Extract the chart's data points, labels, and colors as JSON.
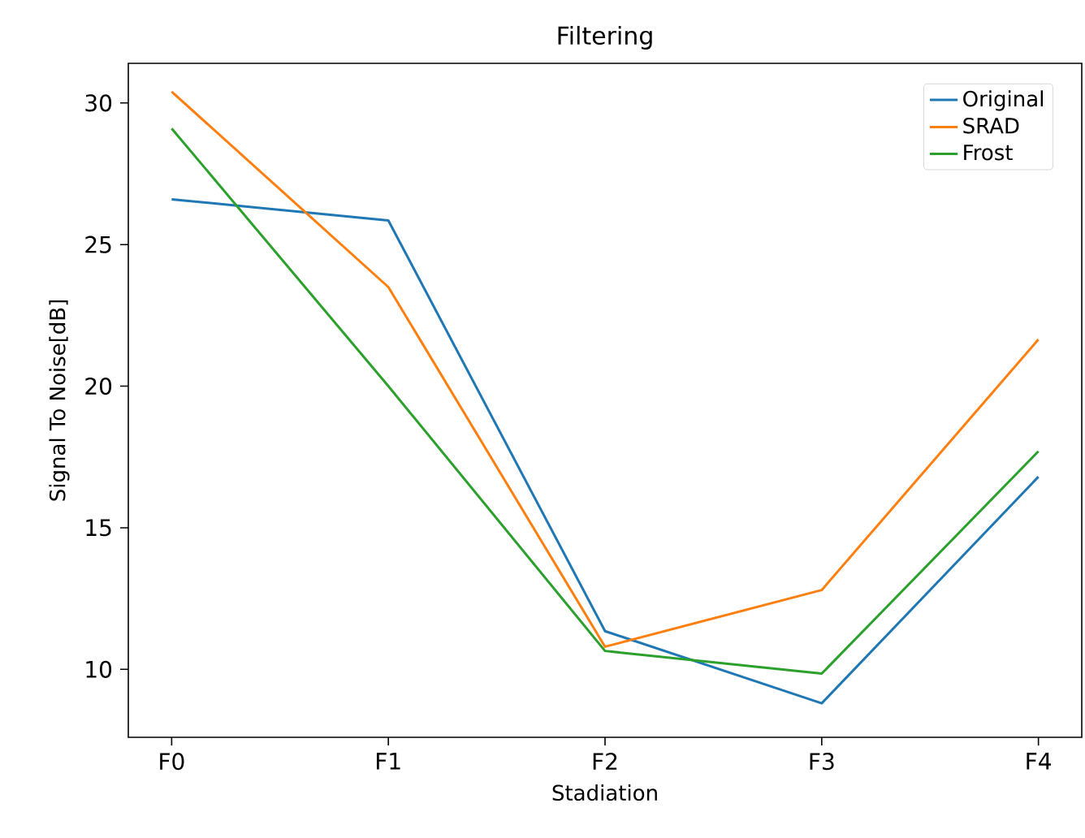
{
  "chart_data": {
    "type": "line",
    "title": "Filtering",
    "xlabel": "Stadiation",
    "ylabel": "Signal To Noise[dB]",
    "categories": [
      "F0",
      "F1",
      "F2",
      "F3",
      "F4"
    ],
    "series": [
      {
        "name": "Original",
        "color": "#1f77b4",
        "values": [
          26.6,
          25.85,
          11.35,
          8.8,
          16.8
        ]
      },
      {
        "name": "SRAD",
        "color": "#ff7f0e",
        "values": [
          30.4,
          23.5,
          10.8,
          12.8,
          21.65
        ]
      },
      {
        "name": "Frost",
        "color": "#2ca02c",
        "values": [
          29.1,
          20.0,
          10.65,
          9.85,
          17.7
        ]
      }
    ],
    "ylim": [
      7.6,
      31.4
    ],
    "yticks": [
      10,
      15,
      20,
      25,
      30
    ],
    "legend": "top right"
  }
}
